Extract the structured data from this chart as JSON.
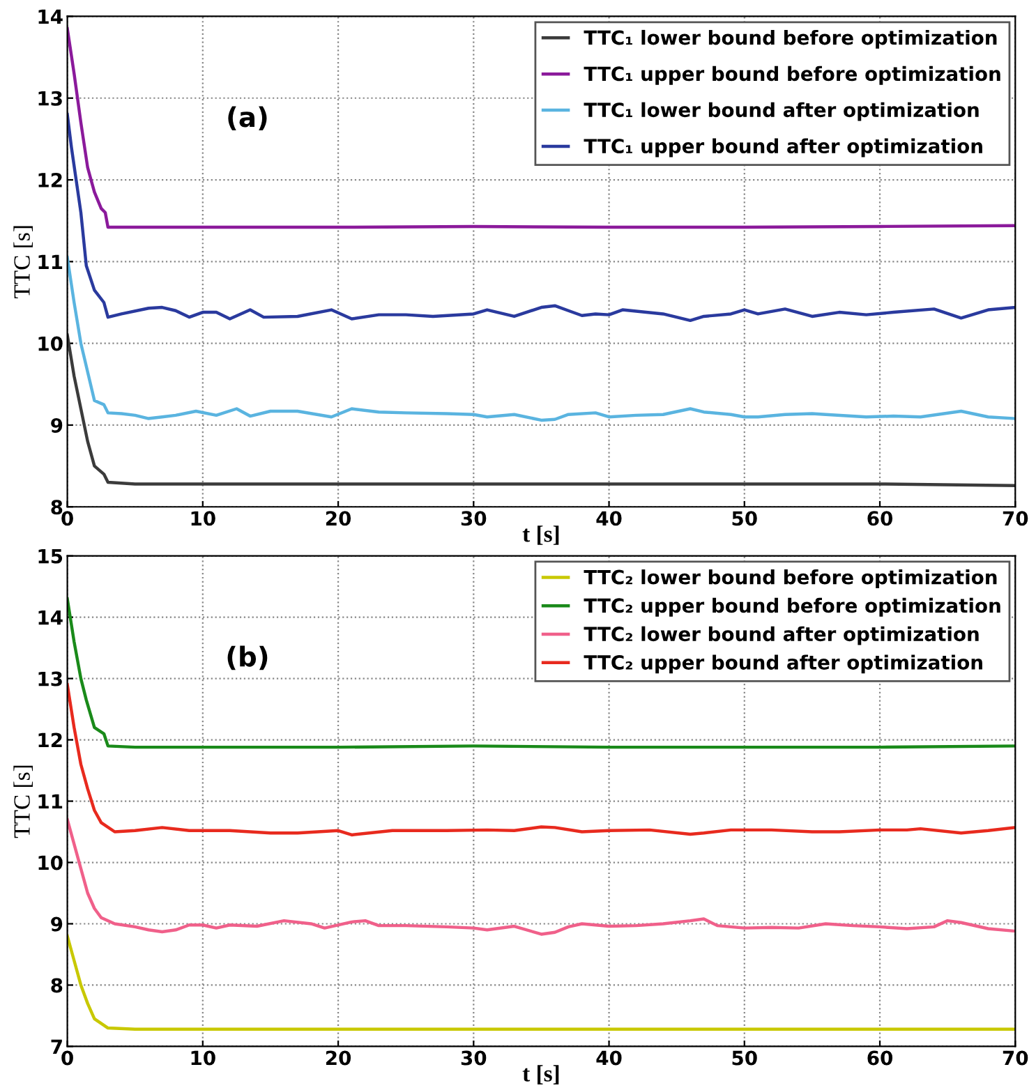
{
  "chart_data": [
    {
      "type": "line",
      "xlabel": "t [s]",
      "ylabel": "TTC [s]",
      "annotations": [
        "(a)"
      ],
      "xlim": [
        0,
        70
      ],
      "ylim": [
        8,
        14
      ],
      "xticks": [
        0,
        10,
        20,
        30,
        40,
        50,
        60,
        70
      ],
      "yticks": [
        8,
        9,
        10,
        11,
        12,
        13,
        14
      ],
      "grid": true,
      "legend": "top right",
      "marker": "none",
      "line_style": "solid",
      "series": [
        {
          "name": "TTC₁ lower bound before optimization",
          "color": "#3b3b3b",
          "x": [
            0,
            0.5,
            1,
            1.5,
            2,
            2.7,
            3,
            5,
            10,
            20,
            30,
            40,
            50,
            60,
            70
          ],
          "values": [
            10.1,
            9.6,
            9.2,
            8.8,
            8.5,
            8.4,
            8.3,
            8.28,
            8.28,
            8.28,
            8.28,
            8.28,
            8.28,
            8.28,
            8.26
          ]
        },
        {
          "name": "TTC₁ upper bound before optimization",
          "color": "#8b1a9b",
          "x": [
            0,
            0.5,
            1,
            1.5,
            2,
            2.5,
            2.8,
            3,
            5,
            10,
            20,
            30,
            40,
            50,
            60,
            70
          ],
          "values": [
            13.85,
            13.3,
            12.7,
            12.15,
            11.85,
            11.65,
            11.6,
            11.42,
            11.42,
            11.42,
            11.42,
            11.43,
            11.42,
            11.42,
            11.43,
            11.44
          ]
        },
        {
          "name": "TTC₁ lower bound after optimization",
          "color": "#5ab4e0",
          "x": [
            0,
            0.5,
            1,
            1.5,
            2,
            2.7,
            3,
            4,
            5,
            6,
            7,
            8,
            9.5,
            11,
            12.5,
            13.5,
            15,
            17,
            19.5,
            21,
            23,
            25,
            28,
            30,
            31,
            33,
            35,
            36,
            37,
            39,
            40,
            42,
            44,
            46,
            47,
            49,
            50,
            51,
            53,
            55,
            56,
            59,
            61,
            63,
            66,
            68,
            70
          ],
          "values": [
            11.05,
            10.5,
            10.0,
            9.65,
            9.3,
            9.25,
            9.15,
            9.14,
            9.12,
            9.08,
            9.1,
            9.12,
            9.17,
            9.12,
            9.2,
            9.11,
            9.17,
            9.17,
            9.1,
            9.2,
            9.16,
            9.15,
            9.14,
            9.13,
            9.1,
            9.13,
            9.06,
            9.07,
            9.13,
            9.15,
            9.1,
            9.12,
            9.13,
            9.2,
            9.16,
            9.13,
            9.1,
            9.1,
            9.13,
            9.14,
            9.13,
            9.1,
            9.11,
            9.1,
            9.17,
            9.1,
            9.08
          ]
        },
        {
          "name": "TTC₁ upper bound after optimization",
          "color": "#2a3a9e",
          "x": [
            0,
            0.3,
            1,
            1.4,
            2,
            2.7,
            3,
            4,
            6,
            7,
            8,
            9,
            10,
            11,
            12,
            13.5,
            14.5,
            17,
            19.5,
            21,
            23,
            25,
            27,
            30,
            31,
            33,
            35,
            36,
            37,
            38,
            39,
            40,
            41,
            44,
            46,
            47,
            49,
            50,
            51,
            53,
            55,
            57,
            59,
            61,
            64,
            66,
            68,
            70
          ],
          "values": [
            12.8,
            12.4,
            11.6,
            10.95,
            10.65,
            10.5,
            10.32,
            10.36,
            10.43,
            10.44,
            10.4,
            10.32,
            10.38,
            10.38,
            10.3,
            10.41,
            10.32,
            10.33,
            10.41,
            10.3,
            10.35,
            10.35,
            10.33,
            10.36,
            10.41,
            10.33,
            10.44,
            10.46,
            10.4,
            10.34,
            10.36,
            10.35,
            10.41,
            10.36,
            10.28,
            10.33,
            10.36,
            10.41,
            10.36,
            10.42,
            10.33,
            10.38,
            10.35,
            10.38,
            10.42,
            10.31,
            10.41,
            10.44
          ]
        }
      ]
    },
    {
      "type": "line",
      "xlabel": "t [s]",
      "ylabel": "TTC [s]",
      "annotations": [
        "(b)"
      ],
      "xlim": [
        0,
        70
      ],
      "ylim": [
        7,
        15
      ],
      "xticks": [
        0,
        10,
        20,
        30,
        40,
        50,
        60,
        70
      ],
      "yticks": [
        7,
        8,
        9,
        10,
        11,
        12,
        13,
        14,
        15
      ],
      "grid": true,
      "legend": "top right",
      "marker": "none",
      "line_style": "solid",
      "series": [
        {
          "name": "TTC₂ lower bound before optimization",
          "color": "#c8c800",
          "x": [
            0,
            0.5,
            1,
            1.5,
            2,
            3,
            5,
            10,
            20,
            30,
            40,
            50,
            60,
            70
          ],
          "values": [
            8.8,
            8.4,
            8.0,
            7.7,
            7.45,
            7.3,
            7.28,
            7.28,
            7.28,
            7.28,
            7.28,
            7.28,
            7.28,
            7.28
          ]
        },
        {
          "name": "TTC₂ upper bound before optimization",
          "color": "#1a8a1a",
          "x": [
            0,
            0.5,
            1,
            1.4,
            2,
            2.7,
            3,
            5,
            10,
            20,
            30,
            40,
            50,
            60,
            70
          ],
          "values": [
            14.3,
            13.6,
            13.0,
            12.65,
            12.2,
            12.1,
            11.9,
            11.88,
            11.88,
            11.88,
            11.9,
            11.88,
            11.88,
            11.88,
            11.9
          ]
        },
        {
          "name": "TTC₂ lower bound after optimization",
          "color": "#f0608a",
          "x": [
            0,
            0.5,
            1,
            1.5,
            2,
            2.5,
            3.5,
            5,
            6,
            7,
            8,
            9,
            10,
            11,
            12,
            14,
            16,
            18,
            19,
            21,
            22,
            23,
            25,
            28,
            30,
            31,
            33,
            35,
            36,
            37,
            38,
            40,
            42,
            44,
            46,
            47,
            48,
            50,
            52,
            54,
            56,
            58,
            60,
            62,
            64,
            65,
            66,
            68,
            70
          ],
          "values": [
            10.7,
            10.3,
            9.9,
            9.5,
            9.25,
            9.1,
            9.0,
            8.95,
            8.9,
            8.87,
            8.9,
            8.98,
            8.98,
            8.93,
            8.98,
            8.96,
            9.05,
            9.0,
            8.93,
            9.03,
            9.05,
            8.97,
            8.97,
            8.95,
            8.93,
            8.9,
            8.96,
            8.83,
            8.86,
            8.95,
            9.0,
            8.96,
            8.97,
            9.0,
            9.05,
            9.08,
            8.97,
            8.93,
            8.94,
            8.93,
            9.0,
            8.97,
            8.95,
            8.92,
            8.95,
            9.05,
            9.02,
            8.92,
            8.88
          ]
        },
        {
          "name": "TTC₂ upper bound after optimization",
          "color": "#e82a1e",
          "x": [
            0,
            0.5,
            1,
            1.5,
            2,
            2.5,
            3.5,
            5,
            7,
            9,
            12,
            15,
            17,
            20,
            21,
            24,
            28,
            31,
            33,
            35,
            36,
            38,
            40,
            43,
            46,
            47,
            49,
            52,
            55,
            57,
            60,
            62,
            63,
            66,
            68,
            70
          ],
          "values": [
            12.9,
            12.2,
            11.6,
            11.2,
            10.85,
            10.65,
            10.5,
            10.52,
            10.57,
            10.52,
            10.52,
            10.48,
            10.48,
            10.52,
            10.45,
            10.52,
            10.52,
            10.53,
            10.52,
            10.58,
            10.57,
            10.5,
            10.52,
            10.53,
            10.46,
            10.48,
            10.53,
            10.53,
            10.5,
            10.5,
            10.53,
            10.53,
            10.55,
            10.48,
            10.52,
            10.57
          ]
        }
      ]
    }
  ]
}
